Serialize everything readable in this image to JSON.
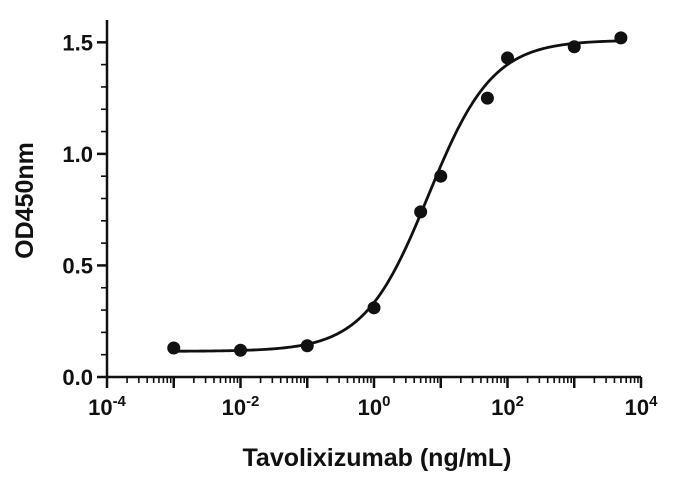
{
  "chart_data": {
    "type": "scatter",
    "xlabel": "Tavolixizumab (ng/mL)",
    "ylabel": "OD450nm",
    "x_scale": "log",
    "xlim": [
      0.0001,
      10000
    ],
    "ylim": [
      0,
      1.6
    ],
    "x_ticks": [
      {
        "base": "10",
        "exp": "-4",
        "value": 0.0001
      },
      {
        "base": "10",
        "exp": "-2",
        "value": 0.01
      },
      {
        "base": "10",
        "exp": "0",
        "value": 1
      },
      {
        "base": "10",
        "exp": "2",
        "value": 100
      },
      {
        "base": "10",
        "exp": "4",
        "value": 10000
      }
    ],
    "y_ticks": [
      "0.0",
      "0.5",
      "1.0",
      "1.5"
    ],
    "grid": false,
    "series": [
      {
        "points": [
          {
            "x": 0.001,
            "y": 0.13
          },
          {
            "x": 0.01,
            "y": 0.12
          },
          {
            "x": 0.1,
            "y": 0.14
          },
          {
            "x": 1,
            "y": 0.31
          },
          {
            "x": 5,
            "y": 0.74
          },
          {
            "x": 10,
            "y": 0.9
          },
          {
            "x": 50,
            "y": 1.25
          },
          {
            "x": 100,
            "y": 1.43
          },
          {
            "x": 1000,
            "y": 1.48
          },
          {
            "x": 5000,
            "y": 1.52
          }
        ],
        "color": "#111111"
      }
    ],
    "fit_curve": {
      "bottom": 0.115,
      "top": 1.51,
      "ec50": 6.5,
      "hill": 0.9,
      "color": "#111111"
    }
  }
}
